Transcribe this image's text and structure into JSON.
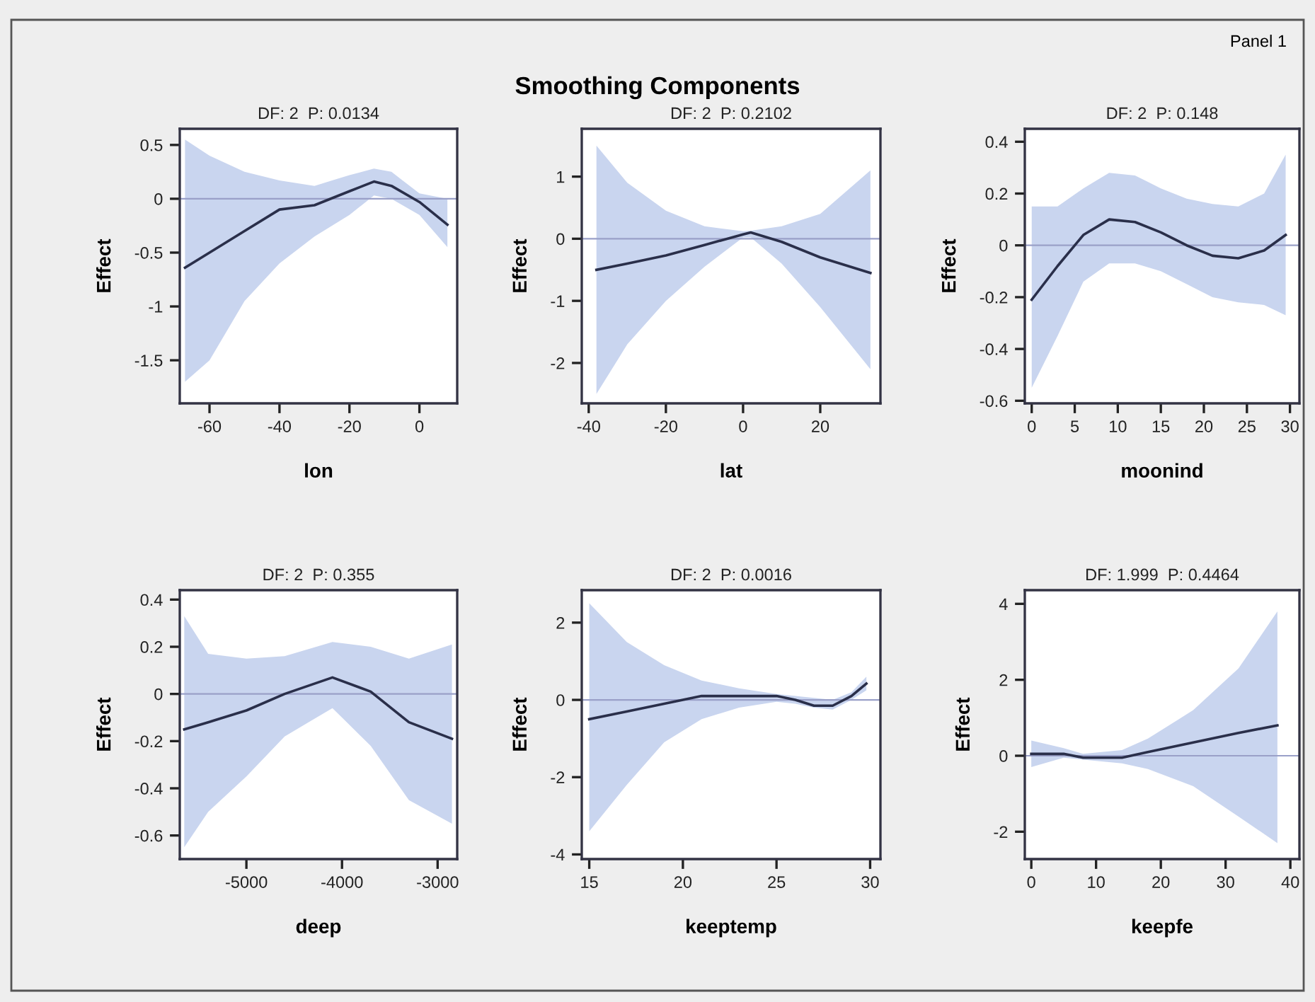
{
  "chart_data": [
    {
      "type": "line",
      "title": "DF: 2  P: 0.0134",
      "xlabel": "lon",
      "ylabel": "Effect",
      "annotations": [
        "Smoothing Components",
        "Panel 1"
      ],
      "xlim": [
        -68.5,
        10.8
      ],
      "xticks": [
        -60,
        -40,
        -20,
        0
      ],
      "ylim": [
        -1.9,
        0.65
      ],
      "yticks": [
        -1.5,
        -1,
        -0.5,
        0,
        0.5
      ],
      "ref_lines": [
        {
          "axis": "y",
          "value": 0,
          "color": "#9aa0c8"
        }
      ],
      "series": [
        {
          "color": "#2a2f4a",
          "x": [
            -67,
            -60,
            -50,
            -40,
            -30,
            -20,
            -13,
            -8,
            0,
            8
          ],
          "values": [
            -0.64,
            -0.5,
            -0.3,
            -0.1,
            -0.06,
            0.07,
            0.16,
            0.12,
            -0.03,
            -0.24
          ],
          "upper": [
            0.55,
            0.4,
            0.25,
            0.17,
            0.12,
            0.22,
            0.28,
            0.25,
            0.05,
            0.0
          ],
          "lower": [
            -1.7,
            -1.5,
            -0.95,
            -0.6,
            -0.35,
            -0.15,
            0.03,
            0.0,
            -0.15,
            -0.45
          ]
        }
      ]
    },
    {
      "type": "line",
      "title": "DF: 2  P: 0.2102",
      "xlabel": "lat",
      "ylabel": "Effect",
      "xlim": [
        -41.8,
        35.6
      ],
      "xticks": [
        -40,
        -20,
        0,
        20
      ],
      "ylim": [
        -2.65,
        1.77
      ],
      "yticks": [
        -2,
        -1,
        0,
        1
      ],
      "ref_lines": [
        {
          "axis": "y",
          "value": 0,
          "color": "#9aa0c8"
        }
      ],
      "series": [
        {
          "color": "#2a2f4a",
          "x": [
            -38,
            -30,
            -20,
            -10,
            0,
            2,
            10,
            20,
            33
          ],
          "values": [
            -0.5,
            -0.4,
            -0.27,
            -0.1,
            0.07,
            0.1,
            -0.05,
            -0.3,
            -0.55
          ],
          "upper": [
            1.5,
            0.9,
            0.45,
            0.2,
            0.12,
            0.13,
            0.2,
            0.4,
            1.1
          ],
          "lower": [
            -2.5,
            -1.7,
            -1.0,
            -0.45,
            0.02,
            0.02,
            -0.4,
            -1.1,
            -2.1
          ]
        }
      ]
    },
    {
      "type": "line",
      "title": "DF: 2  P: 0.148",
      "xlabel": "moonind",
      "ylabel": "Effect",
      "xlim": [
        -0.8,
        31.1
      ],
      "xticks": [
        0,
        5,
        10,
        15,
        20,
        25,
        30
      ],
      "ylim": [
        -0.61,
        0.45
      ],
      "yticks": [
        -0.6,
        -0.4,
        -0.2,
        0,
        0.2,
        0.4
      ],
      "ref_lines": [
        {
          "axis": "y",
          "value": 0,
          "color": "#9aa0c8"
        }
      ],
      "series": [
        {
          "color": "#2a2f4a",
          "x": [
            0,
            3,
            6,
            9,
            12,
            15,
            18,
            21,
            24,
            27,
            29.5
          ],
          "values": [
            -0.21,
            -0.08,
            0.04,
            0.1,
            0.09,
            0.05,
            0.0,
            -0.04,
            -0.05,
            -0.02,
            0.04
          ],
          "upper": [
            0.15,
            0.15,
            0.22,
            0.28,
            0.27,
            0.22,
            0.18,
            0.16,
            0.15,
            0.2,
            0.35
          ],
          "lower": [
            -0.55,
            -0.35,
            -0.14,
            -0.07,
            -0.07,
            -0.1,
            -0.15,
            -0.2,
            -0.22,
            -0.23,
            -0.27
          ]
        }
      ]
    },
    {
      "type": "line",
      "title": "DF: 2  P: 0.355",
      "xlabel": "deep",
      "ylabel": "Effect",
      "xlim": [
        -5697,
        -2795
      ],
      "xticks": [
        -5000,
        -4000,
        -3000
      ],
      "ylim": [
        -0.7,
        0.44
      ],
      "yticks": [
        -0.6,
        -0.4,
        -0.2,
        0,
        0.2,
        0.4
      ],
      "ref_lines": [
        {
          "axis": "y",
          "value": 0,
          "color": "#9aa0c8"
        }
      ],
      "series": [
        {
          "color": "#2a2f4a",
          "x": [
            -5650,
            -5400,
            -5000,
            -4600,
            -4100,
            -3700,
            -3300,
            -2850
          ],
          "values": [
            -0.15,
            -0.12,
            -0.07,
            0.0,
            0.07,
            0.01,
            -0.12,
            -0.19
          ],
          "upper": [
            0.33,
            0.17,
            0.15,
            0.16,
            0.22,
            0.2,
            0.15,
            0.21
          ],
          "lower": [
            -0.65,
            -0.5,
            -0.35,
            -0.18,
            -0.06,
            -0.22,
            -0.45,
            -0.55
          ]
        }
      ]
    },
    {
      "type": "line",
      "title": "DF: 2  P: 0.0016",
      "xlabel": "keeptemp",
      "ylabel": "Effect",
      "xlim": [
        14.6,
        30.55
      ],
      "xticks": [
        15,
        20,
        25,
        30
      ],
      "ylim": [
        -4.12,
        2.84
      ],
      "yticks": [
        -4,
        -2,
        0,
        2
      ],
      "ref_lines": [
        {
          "axis": "y",
          "value": 0,
          "color": "#9aa0c8"
        }
      ],
      "series": [
        {
          "color": "#2a2f4a",
          "x": [
            15,
            17,
            19,
            21,
            23,
            25,
            26,
            27,
            28,
            29,
            29.8
          ],
          "values": [
            -0.5,
            -0.3,
            -0.1,
            0.1,
            0.1,
            0.1,
            0.0,
            -0.15,
            -0.15,
            0.1,
            0.42
          ],
          "upper": [
            2.5,
            1.5,
            0.9,
            0.5,
            0.3,
            0.15,
            0.1,
            0.05,
            0.0,
            0.2,
            0.6
          ],
          "lower": [
            -3.4,
            -2.2,
            -1.1,
            -0.5,
            -0.2,
            -0.05,
            -0.1,
            -0.2,
            -0.25,
            0.0,
            0.25
          ]
        }
      ]
    },
    {
      "type": "line",
      "title": "DF: 1.999  P: 0.4464",
      "xlabel": "keepfe",
      "ylabel": "Effect",
      "xlim": [
        -1.0,
        41.4
      ],
      "xticks": [
        0,
        10,
        20,
        30,
        40
      ],
      "ylim": [
        -2.72,
        4.36
      ],
      "yticks": [
        -2,
        0,
        2,
        4
      ],
      "ref_lines": [
        {
          "axis": "y",
          "value": 0,
          "color": "#9aa0c8"
        }
      ],
      "series": [
        {
          "color": "#2a2f4a",
          "x": [
            0,
            5,
            8,
            14,
            18,
            25,
            32,
            38
          ],
          "values": [
            0.05,
            0.05,
            -0.05,
            -0.05,
            0.1,
            0.35,
            0.6,
            0.8
          ],
          "upper": [
            0.4,
            0.2,
            0.05,
            0.15,
            0.45,
            1.2,
            2.3,
            3.8
          ],
          "lower": [
            -0.3,
            -0.05,
            -0.1,
            -0.2,
            -0.35,
            -0.8,
            -1.6,
            -2.3
          ]
        }
      ]
    }
  ]
}
